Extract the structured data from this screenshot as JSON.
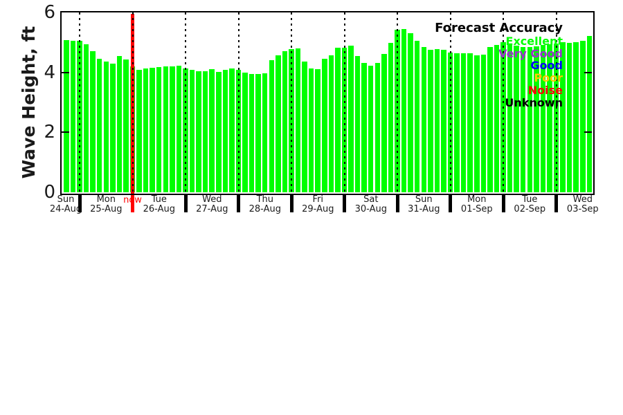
{
  "chart_data": {
    "type": "bar",
    "title": "",
    "ylabel": "Wave Height, ft",
    "xlabel": "",
    "ylim": [
      0,
      6
    ],
    "yticks": [
      "0",
      "2",
      "4",
      "6"
    ],
    "bar_color": "#00ff00",
    "grid": "dotted vertical lines at each day boundary",
    "legend_position": "top-right inside plot",
    "interval_hours": 3,
    "now_label": "now",
    "now_line_color": "#ff0000",
    "now_at": "Tue 26-Aug 00:00",
    "days": [
      {
        "name": "Sun",
        "date": "24-Aug",
        "bars": 2
      },
      {
        "name": "Mon",
        "date": "25-Aug",
        "bars": 8
      },
      {
        "name": "Tue",
        "date": "26-Aug",
        "bars": 8
      },
      {
        "name": "Wed",
        "date": "27-Aug",
        "bars": 8
      },
      {
        "name": "Thu",
        "date": "28-Aug",
        "bars": 8
      },
      {
        "name": "Fri",
        "date": "29-Aug",
        "bars": 8
      },
      {
        "name": "Sat",
        "date": "30-Aug",
        "bars": 8
      },
      {
        "name": "Sun",
        "date": "31-Aug",
        "bars": 8
      },
      {
        "name": "Mon",
        "date": "01-Sep",
        "bars": 8
      },
      {
        "name": "Tue",
        "date": "02-Sep",
        "bars": 8
      },
      {
        "name": "Wed",
        "date": "03-Sep",
        "bars": 6
      }
    ],
    "values": [
      5.08,
      5.06,
      5.05,
      4.93,
      4.7,
      4.46,
      4.37,
      4.29,
      4.54,
      4.44,
      4.19,
      4.09,
      4.13,
      4.15,
      4.18,
      4.2,
      4.2,
      4.22,
      4.13,
      4.08,
      4.05,
      4.05,
      4.1,
      4.01,
      4.08,
      4.14,
      4.08,
      3.99,
      3.95,
      3.95,
      3.98,
      4.41,
      4.58,
      4.71,
      4.77,
      4.79,
      4.36,
      4.13,
      4.12,
      4.46,
      4.58,
      4.83,
      4.83,
      4.89,
      4.54,
      4.31,
      4.22,
      4.31,
      4.62,
      4.99,
      5.42,
      5.45,
      5.31,
      5.05,
      4.84,
      4.75,
      4.77,
      4.75,
      4.67,
      4.63,
      4.63,
      4.63,
      4.58,
      4.6,
      4.85,
      4.92,
      5.0,
      4.95,
      4.9,
      4.85,
      4.85,
      4.88,
      4.92,
      4.95,
      4.96,
      5.0,
      4.98,
      5.0,
      5.06,
      5.22
    ],
    "legend": {
      "title": "Forecast Accuracy",
      "entries": [
        {
          "label": "Excellent",
          "color": "#00ff00"
        },
        {
          "label": "Very Good",
          "color": "#9933cc"
        },
        {
          "label": "Good",
          "color": "#0000ff"
        },
        {
          "label": "Poor",
          "color": "#ffcc00"
        },
        {
          "label": "Noise",
          "color": "#ff0000"
        },
        {
          "label": "Unknown",
          "color": "#000000"
        }
      ]
    }
  }
}
